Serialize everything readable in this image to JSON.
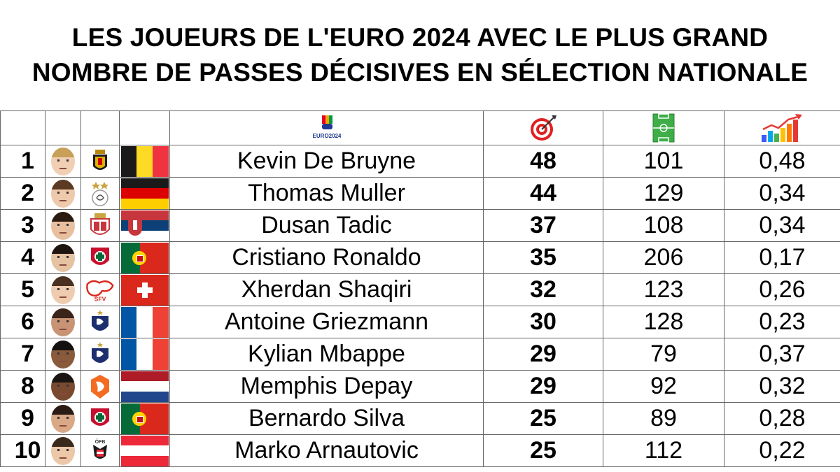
{
  "title": {
    "line1": "LES JOUEURS DE L'EURO 2024 AVEC LE PLUS GRAND",
    "line2": "NOMBRE DE PASSES DÉCISIVES EN SÉLECTION NATIONALE"
  },
  "header": {
    "logo_text": "EURO2024",
    "assists_icon": "target-icon",
    "matches_icon": "football-pitch-icon",
    "ratio_icon": "growth-chart-icon"
  },
  "rows": [
    {
      "rank": "1",
      "name": "Kevin De Bruyne",
      "assists": "48",
      "matches": "101",
      "ratio": "0,48",
      "team": "belgium"
    },
    {
      "rank": "2",
      "name": "Thomas Muller",
      "assists": "44",
      "matches": "129",
      "ratio": "0,34",
      "team": "germany"
    },
    {
      "rank": "3",
      "name": "Dusan Tadic",
      "assists": "37",
      "matches": "108",
      "ratio": "0,34",
      "team": "serbia"
    },
    {
      "rank": "4",
      "name": "Cristiano Ronaldo",
      "assists": "35",
      "matches": "206",
      "ratio": "0,17",
      "team": "portugal"
    },
    {
      "rank": "5",
      "name": "Xherdan Shaqiri",
      "assists": "32",
      "matches": "123",
      "ratio": "0,26",
      "team": "switzerland"
    },
    {
      "rank": "6",
      "name": "Antoine Griezmann",
      "assists": "30",
      "matches": "128",
      "ratio": "0,23",
      "team": "france"
    },
    {
      "rank": "7",
      "name": "Kylian Mbappe",
      "assists": "29",
      "matches": "79",
      "ratio": "0,37",
      "team": "france"
    },
    {
      "rank": "8",
      "name": "Memphis Depay",
      "assists": "29",
      "matches": "92",
      "ratio": "0,32",
      "team": "netherlands"
    },
    {
      "rank": "9",
      "name": "Bernardo Silva",
      "assists": "25",
      "matches": "89",
      "ratio": "0,28",
      "team": "portugal"
    },
    {
      "rank": "10",
      "name": "Marko Arnautovic",
      "assists": "25",
      "matches": "112",
      "ratio": "0,22",
      "team": "austria"
    }
  ],
  "colors": {
    "belgium": [
      "#1a1a1a",
      "#fdda24",
      "#ef3340"
    ],
    "germany": [
      "#1a1a1a",
      "#dd0000",
      "#ffce00"
    ],
    "serbia": [
      "#c6363c",
      "#0c4076",
      "#ffffff"
    ],
    "portugal": [
      "#046a38",
      "#da291c"
    ],
    "switzerland": "#da291c",
    "france": [
      "#0055a4",
      "#ffffff",
      "#ef4135"
    ],
    "netherlands": [
      "#ae1c28",
      "#ffffff",
      "#21468b"
    ],
    "austria": [
      "#ed2939",
      "#ffffff",
      "#ed2939"
    ]
  }
}
